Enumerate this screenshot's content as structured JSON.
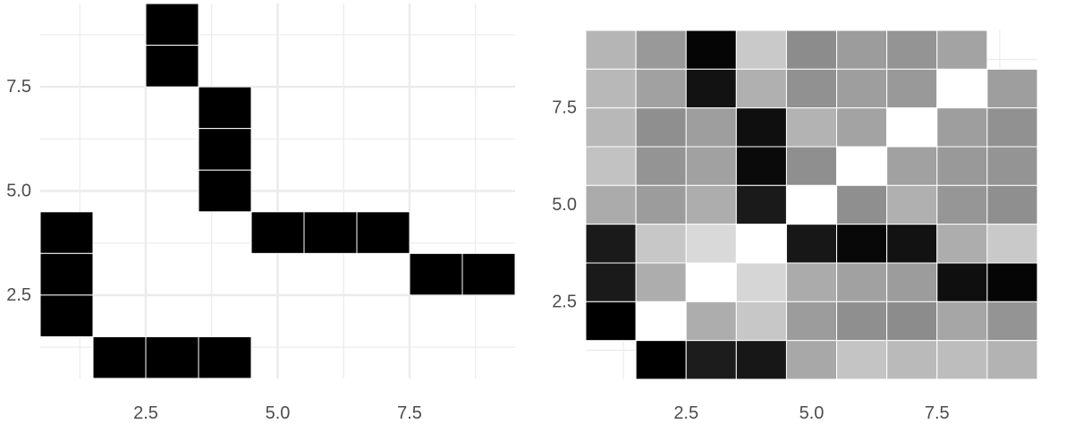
{
  "chart_data": [
    {
      "type": "heatmap",
      "panel": "left",
      "cell_color": "#000000",
      "cells": [
        [
          3,
          9
        ],
        [
          3,
          8
        ],
        [
          4,
          7
        ],
        [
          4,
          6
        ],
        [
          4,
          5
        ],
        [
          1,
          4
        ],
        [
          5,
          4
        ],
        [
          6,
          4
        ],
        [
          7,
          4
        ],
        [
          1,
          3
        ],
        [
          8,
          3
        ],
        [
          9,
          3
        ],
        [
          1,
          2
        ],
        [
          2,
          1
        ],
        [
          3,
          1
        ],
        [
          4,
          1
        ]
      ],
      "xlim": [
        0.5,
        9.5
      ],
      "ylim": [
        0.5,
        9.5
      ],
      "x_ticks": [
        2.5,
        5.0,
        7.5
      ],
      "x_tick_labels": [
        "2.5",
        "5.0",
        "7.5"
      ],
      "y_ticks": [
        2.5,
        5.0,
        7.5
      ],
      "y_tick_labels": [
        "2.5",
        "5.0",
        "7.5"
      ],
      "title": "",
      "xlabel": "",
      "ylabel": "",
      "grid": true,
      "legend": "none"
    },
    {
      "type": "heatmap",
      "panel": "right",
      "color_scale": "grayscale (0 = black, 1 = white)",
      "rows_from_top": [
        [
          0.71,
          0.6,
          0.02,
          0.79,
          0.55,
          0.61,
          0.58,
          0.64,
          null
        ],
        [
          0.72,
          0.63,
          0.07,
          0.69,
          0.57,
          0.62,
          0.6,
          1.0,
          0.62
        ],
        [
          0.72,
          0.56,
          0.62,
          0.06,
          0.7,
          0.64,
          1.0,
          0.62,
          0.57
        ],
        [
          0.76,
          0.58,
          0.63,
          0.04,
          0.56,
          1.0,
          0.63,
          0.6,
          0.58
        ],
        [
          0.67,
          0.61,
          0.68,
          0.1,
          1.0,
          0.56,
          0.69,
          0.59,
          0.56
        ],
        [
          0.1,
          0.78,
          0.85,
          1.0,
          0.09,
          0.03,
          0.07,
          0.68,
          0.79
        ],
        [
          0.1,
          0.68,
          1.0,
          0.84,
          0.67,
          0.63,
          0.61,
          0.06,
          0.02
        ],
        [
          0.0,
          1.0,
          0.68,
          0.78,
          0.61,
          0.56,
          0.55,
          0.65,
          0.58
        ],
        [
          null,
          0.0,
          0.11,
          0.09,
          0.66,
          0.77,
          0.73,
          0.74,
          0.7
        ]
      ],
      "xlim": [
        0.5,
        9.5
      ],
      "ylim": [
        0.5,
        9.5
      ],
      "x_ticks": [
        2.5,
        5.0,
        7.5
      ],
      "x_tick_labels": [
        "2.5",
        "5.0",
        "7.5"
      ],
      "y_ticks": [
        2.5,
        5.0,
        7.5
      ],
      "y_tick_labels": [
        "2.5",
        "5.0",
        "7.5"
      ],
      "title": "",
      "xlabel": "",
      "ylabel": "",
      "grid": true,
      "legend": "none"
    }
  ],
  "theme": {
    "background": "#ffffff",
    "grid_color": "#ebebeb",
    "tick_label_color": "#4d4d4d",
    "cell_border_color": "#ffffff"
  }
}
